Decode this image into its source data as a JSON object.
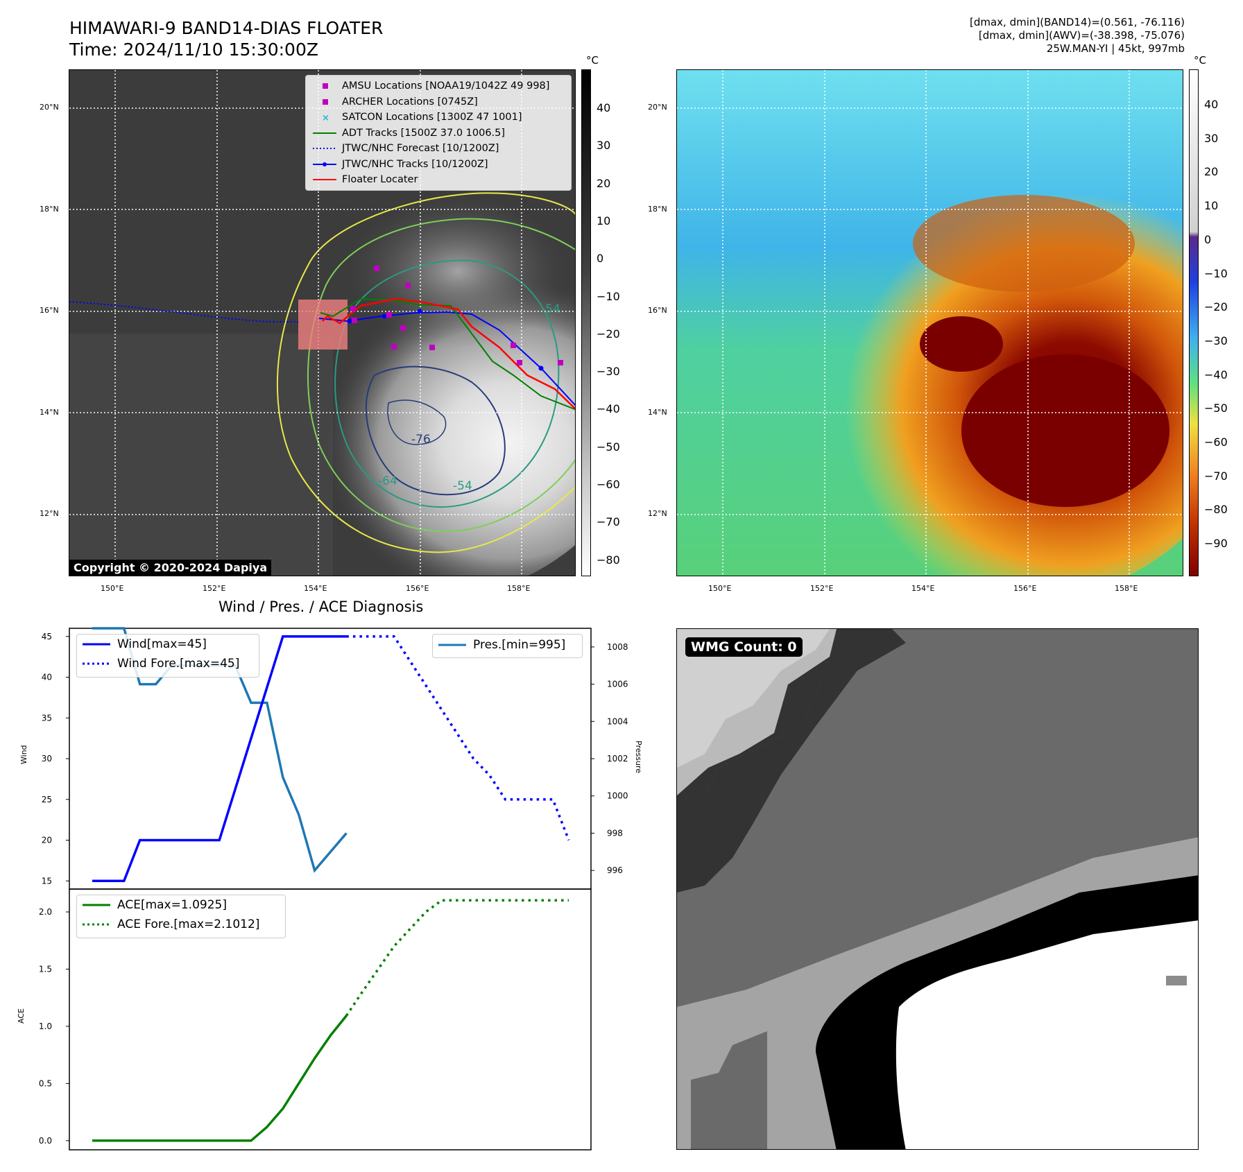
{
  "header": {
    "title_line1": "HIMAWARI-9 BAND14-DIAS FLOATER",
    "title_line2": "Time: 2024/11/10 15:30:00Z",
    "right_line1": "[dmax, dmin](BAND14)=(0.561, -76.116)",
    "right_line2": "[dmax, dmin](AWV)=(-38.398, -75.076)",
    "right_line3": "25W.MAN-YI | 45kt, 997mb"
  },
  "map_axes": {
    "lon_labels": [
      "150°E",
      "152°E",
      "154°E",
      "156°E",
      "158°E"
    ],
    "lat_labels": [
      "20°N",
      "18°N",
      "16°N",
      "14°N",
      "12°N"
    ]
  },
  "colorbar_left": {
    "unit": "°C",
    "ticks": [
      "40",
      "30",
      "20",
      "10",
      "0",
      "−10",
      "−20",
      "−30",
      "−40",
      "−50",
      "−60",
      "−70",
      "−80"
    ]
  },
  "colorbar_right": {
    "unit": "°C",
    "ticks": [
      "40",
      "30",
      "20",
      "10",
      "0",
      "−10",
      "−20",
      "−30",
      "−40",
      "−50",
      "−60",
      "−70",
      "−80",
      "−90"
    ]
  },
  "copyright": "Copyright © 2020-2024 Dapiya",
  "map_legend": [
    {
      "label": "AMSU Locations [NOAA19/1042Z 49 998]",
      "marker": "square",
      "color": "#bf00bf"
    },
    {
      "label": "ARCHER Locations [0745Z]",
      "marker": "square",
      "color": "#bf00bf"
    },
    {
      "label": "SATCON Locations [1300Z 47 1001]",
      "marker": "x",
      "color": "#17becf"
    },
    {
      "label": "ADT Tracks [1500Z 37.0 1006.5]",
      "marker": "line",
      "color": "#008000"
    },
    {
      "label": "JTWC/NHC Forecast [10/1200Z]",
      "marker": "dotted",
      "color": "#0000ff"
    },
    {
      "label": "JTWC/NHC Tracks [10/1200Z]",
      "marker": "line-dot",
      "color": "#0000ff"
    },
    {
      "label": "Floater Locater",
      "marker": "line",
      "color": "#ff0000"
    }
  ],
  "contour_labels": [
    "-76",
    "-64",
    "-54",
    "-54"
  ],
  "diagnosis": {
    "title": "Wind / Pres. / ACE Diagnosis",
    "wind_ylabel": "Wind",
    "pres_ylabel": "Pressure",
    "ace_ylabel": "ACE",
    "legend_wind": "Wind[max=45]",
    "legend_wind_fore": "Wind Fore.[max=45]",
    "legend_pres": "Pres.[min=995]",
    "legend_ace": "ACE[max=1.0925]",
    "legend_ace_fore": "ACE Fore.[max=2.1012]",
    "wind_ticks": [
      "45",
      "40",
      "35",
      "30",
      "25",
      "20",
      "15"
    ],
    "pres_ticks": [
      "1008",
      "1006",
      "1004",
      "1002",
      "1000",
      "998",
      "996"
    ],
    "ace_ticks": [
      "2.0",
      "1.5",
      "1.0",
      "0.5",
      "0.0"
    ]
  },
  "wmg": {
    "label": "WMG Count: 0"
  },
  "chart_data": [
    {
      "type": "line",
      "title": "Wind / Pres. / ACE Diagnosis",
      "ylabel": "Wind",
      "ylim": [
        14,
        46
      ],
      "series": [
        {
          "name": "Wind[max=45]",
          "style": "solid",
          "color": "#0000ff",
          "x": [
            0,
            2,
            3,
            8,
            12,
            14,
            16
          ],
          "values": [
            15,
            15,
            20,
            20,
            45,
            45,
            45
          ]
        },
        {
          "name": "Wind Fore.[max=45]",
          "style": "dotted",
          "color": "#0000ff",
          "x": [
            16,
            19,
            20,
            21,
            22,
            23,
            24,
            25,
            26,
            27,
            28,
            29,
            30
          ],
          "values": [
            45,
            45,
            42,
            39,
            36,
            33,
            30,
            28,
            25,
            25,
            25,
            25,
            20
          ]
        }
      ]
    },
    {
      "type": "line",
      "ylabel": "Pressure",
      "ylim": [
        995,
        1009
      ],
      "series": [
        {
          "name": "Pres.[min=995]",
          "style": "solid",
          "color": "#1f77b4",
          "x": [
            0,
            1,
            2,
            3,
            4,
            5,
            6,
            7,
            8,
            9,
            10,
            11,
            12,
            13,
            14,
            15,
            16
          ],
          "values": [
            1009,
            1009,
            1009,
            1006,
            1006,
            1007,
            1007,
            1007,
            1007,
            1007,
            1005,
            1005,
            1001,
            999,
            996,
            997,
            998
          ]
        }
      ]
    },
    {
      "type": "line",
      "ylabel": "ACE",
      "ylim": [
        -0.08,
        2.2
      ],
      "series": [
        {
          "name": "ACE[max=1.0925]",
          "style": "solid",
          "color": "#008000",
          "x": [
            0,
            2,
            4,
            6,
            8,
            10,
            11,
            12,
            13,
            14,
            15,
            16
          ],
          "values": [
            0,
            0,
            0,
            0,
            0,
            0,
            0.12,
            0.28,
            0.5,
            0.72,
            0.92,
            1.0925
          ]
        },
        {
          "name": "ACE Fore.[max=2.1012]",
          "style": "dotted",
          "color": "#008000",
          "x": [
            16,
            17,
            18,
            19,
            20,
            21,
            22,
            24,
            26,
            28,
            30
          ],
          "values": [
            1.0925,
            1.3,
            1.5,
            1.7,
            1.85,
            2.0,
            2.1012,
            2.1012,
            2.1012,
            2.1012,
            2.1012
          ]
        }
      ]
    }
  ]
}
